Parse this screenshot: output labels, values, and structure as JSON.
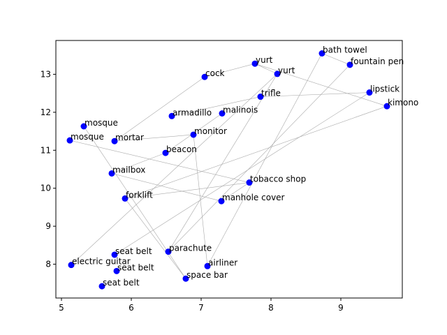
{
  "chart_data": {
    "type": "scatter",
    "title": "",
    "xlabel": "",
    "ylabel": "",
    "xlim": [
      4.92,
      9.88
    ],
    "ylim": [
      7.11,
      13.89
    ],
    "xticks": [
      5,
      6,
      7,
      8,
      9
    ],
    "yticks": [
      8,
      9,
      10,
      11,
      12,
      13
    ],
    "grid": false,
    "point_color": "#0000ff",
    "edge_color": "#aaaaaa",
    "points": [
      {
        "label": "bath towel",
        "x": 8.73,
        "y": 13.55
      },
      {
        "label": "yurt",
        "x": 7.77,
        "y": 13.28
      },
      {
        "label": "yurt",
        "x": 8.09,
        "y": 13.01
      },
      {
        "label": "fountain pen",
        "x": 9.13,
        "y": 13.25
      },
      {
        "label": "cock",
        "x": 7.05,
        "y": 12.93
      },
      {
        "label": "trifle",
        "x": 7.85,
        "y": 12.41
      },
      {
        "label": "lipstick",
        "x": 9.41,
        "y": 12.52
      },
      {
        "label": "kimono",
        "x": 9.66,
        "y": 12.16
      },
      {
        "label": "armadillo",
        "x": 6.58,
        "y": 11.9
      },
      {
        "label": "malinois",
        "x": 7.3,
        "y": 11.97
      },
      {
        "label": "mosque",
        "x": 5.32,
        "y": 11.63
      },
      {
        "label": "mosque",
        "x": 5.12,
        "y": 11.26
      },
      {
        "label": "mortar",
        "x": 5.76,
        "y": 11.24
      },
      {
        "label": "monitor",
        "x": 6.89,
        "y": 11.41
      },
      {
        "label": "beacon",
        "x": 6.49,
        "y": 10.93
      },
      {
        "label": "mailbox",
        "x": 5.72,
        "y": 10.39
      },
      {
        "label": "tobacco shop",
        "x": 7.69,
        "y": 10.15
      },
      {
        "label": "forklift",
        "x": 5.91,
        "y": 9.73
      },
      {
        "label": "manhole cover",
        "x": 7.29,
        "y": 9.66
      },
      {
        "label": "parachute",
        "x": 6.53,
        "y": 8.33
      },
      {
        "label": "seat belt",
        "x": 5.76,
        "y": 8.25
      },
      {
        "label": "electric guitar",
        "x": 5.14,
        "y": 7.98
      },
      {
        "label": "airliner",
        "x": 7.09,
        "y": 7.95
      },
      {
        "label": "seat belt",
        "x": 5.79,
        "y": 7.82
      },
      {
        "label": "space bar",
        "x": 6.78,
        "y": 7.62
      },
      {
        "label": "seat belt",
        "x": 5.58,
        "y": 7.42
      }
    ],
    "edges": [
      [
        11,
        16
      ],
      [
        10,
        24
      ],
      [
        12,
        4
      ],
      [
        4,
        1
      ],
      [
        1,
        2
      ],
      [
        1,
        7
      ],
      [
        2,
        21
      ],
      [
        2,
        19
      ],
      [
        6,
        5
      ],
      [
        5,
        8
      ],
      [
        9,
        14
      ],
      [
        14,
        15
      ],
      [
        15,
        18
      ],
      [
        18,
        16
      ],
      [
        16,
        17
      ],
      [
        13,
        12
      ],
      [
        13,
        22
      ],
      [
        17,
        24
      ],
      [
        0,
        3
      ],
      [
        0,
        22
      ],
      [
        3,
        19
      ],
      [
        6,
        20
      ],
      [
        7,
        17
      ]
    ]
  }
}
